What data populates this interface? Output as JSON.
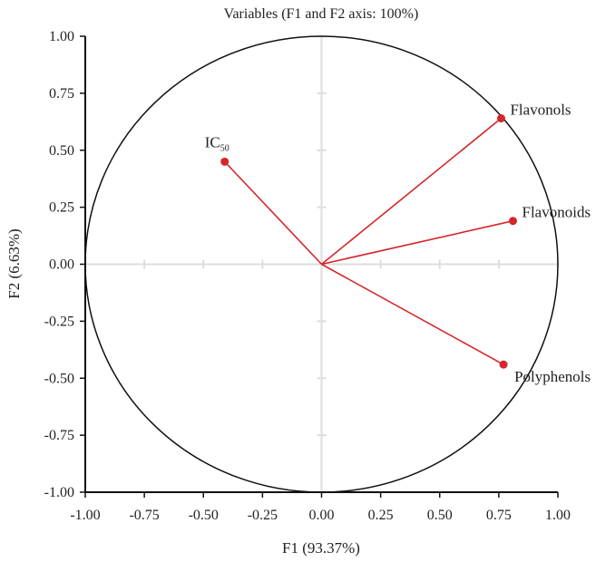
{
  "chart_data": {
    "type": "scatter",
    "subtype": "correlation-circle",
    "title": "Variables (F1 and F2 axis: 100%)",
    "xlabel": "F1 (93.37%)",
    "ylabel": "F2 (6.63%)",
    "xlim": [
      -1,
      1
    ],
    "ylim": [
      -1,
      1
    ],
    "xticks": [
      "-1.00",
      "-0.75",
      "-0.50",
      "-0.25",
      "0.00",
      "0.25",
      "0.50",
      "0.75",
      "1.00"
    ],
    "yticks": [
      "-1.00",
      "-0.75",
      "-0.50",
      "-0.25",
      "0.00",
      "0.25",
      "0.50",
      "0.75",
      "1.00"
    ],
    "grid": false,
    "color": "#d4262c",
    "points": [
      {
        "label": "IC",
        "subscript": "50",
        "x": -0.41,
        "y": 0.45
      },
      {
        "label": "Flavonols",
        "x": 0.76,
        "y": 0.64
      },
      {
        "label": "Flavonoids",
        "x": 0.81,
        "y": 0.19
      },
      {
        "label": "Polyphenols",
        "x": 0.77,
        "y": -0.44
      }
    ]
  }
}
